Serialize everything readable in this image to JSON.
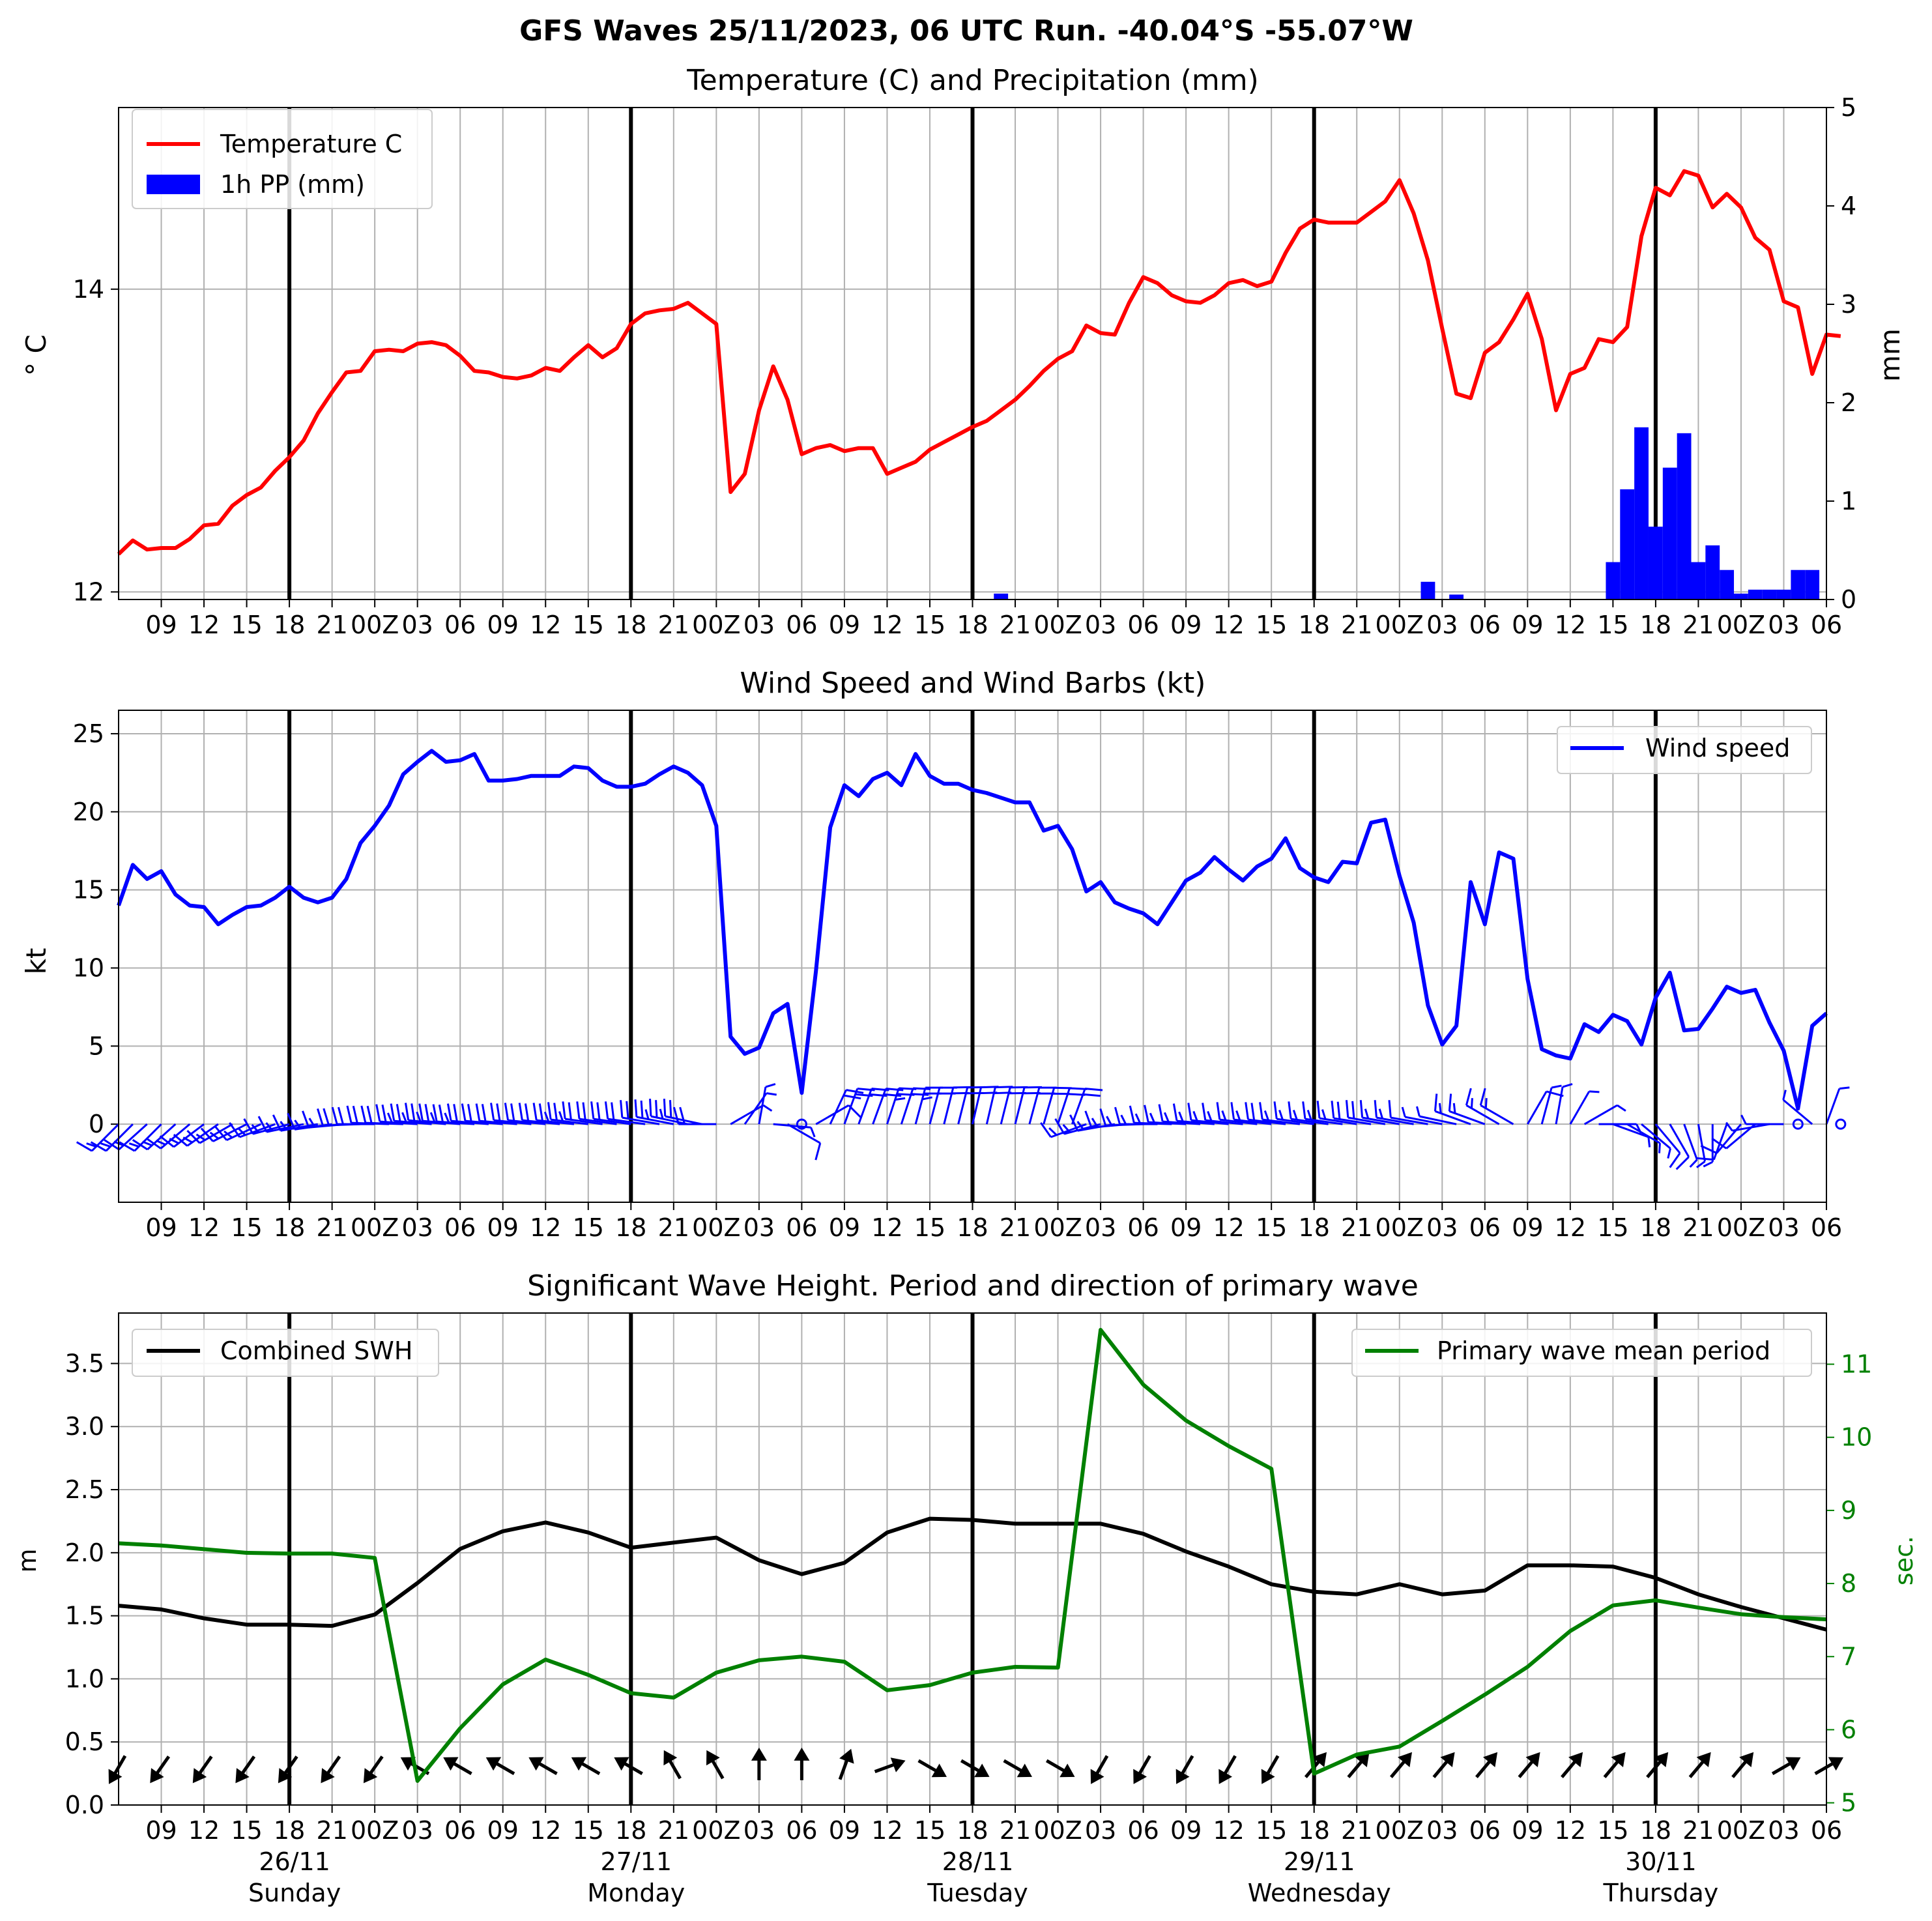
{
  "figure": {
    "suptitle": "GFS Waves 25/11/2023, 06 UTC Run. -40.04°S -55.07°W"
  },
  "time_axis": {
    "start_hour": 6,
    "end_hour": 126,
    "tick_labels": [
      "09",
      "12",
      "15",
      "18",
      "21",
      "00Z",
      "03",
      "06",
      "09",
      "12",
      "15",
      "18",
      "21",
      "00Z",
      "03",
      "06",
      "09",
      "12",
      "15",
      "18",
      "21",
      "00Z",
      "03",
      "06",
      "09",
      "12",
      "15",
      "18",
      "21",
      "00Z",
      "03",
      "06",
      "09",
      "12",
      "15",
      "18",
      "21",
      "00Z",
      "03",
      "06"
    ],
    "days": [
      {
        "date": "26/11",
        "weekday": "Sunday"
      },
      {
        "date": "27/11",
        "weekday": "Monday"
      },
      {
        "date": "28/11",
        "weekday": "Tuesday"
      },
      {
        "date": "29/11",
        "weekday": "Wednesday"
      },
      {
        "date": "30/11",
        "weekday": "Thursday"
      }
    ]
  },
  "colors": {
    "temperature": "#ff0000",
    "precip": "#0000ff",
    "wind": "#0000ff",
    "swh": "#000000",
    "period": "#008000",
    "grid": "#b0b0b0"
  },
  "chart_data": [
    {
      "type": "line",
      "title": "Temperature (C) and Precipitation (mm)",
      "ylabel": "° C",
      "y2label": "mm",
      "ylim": [
        11.95,
        15.2
      ],
      "yticks": [
        12,
        14
      ],
      "y2lim": [
        0,
        5
      ],
      "y2ticks": [
        0,
        1,
        2,
        3,
        4,
        5
      ],
      "legend": "top-left",
      "series": [
        {
          "name": "Temperature C",
          "x_start": 6,
          "x_step": 1,
          "values": [
            12.25,
            12.34,
            12.28,
            12.29,
            12.29,
            12.35,
            12.44,
            12.45,
            12.57,
            12.64,
            12.69,
            12.8,
            12.89,
            13.0,
            13.18,
            13.32,
            13.45,
            13.46,
            13.59,
            13.6,
            13.59,
            13.64,
            13.65,
            13.63,
            13.56,
            13.46,
            13.45,
            13.42,
            13.41,
            13.43,
            13.48,
            13.46,
            13.55,
            13.63,
            13.55,
            13.61,
            13.77,
            13.84,
            13.86,
            13.87,
            13.91,
            13.84,
            13.77,
            12.66,
            12.78,
            13.2,
            13.49,
            13.27,
            12.91,
            12.95,
            12.97,
            12.93,
            12.95,
            12.95,
            12.78,
            12.82,
            12.86,
            12.94,
            12.99,
            13.04,
            13.09,
            13.13,
            13.2,
            13.27,
            13.36,
            13.46,
            13.54,
            13.59,
            13.76,
            13.71,
            13.7,
            13.91,
            14.08,
            14.04,
            13.96,
            13.92,
            13.91,
            13.96,
            14.04,
            14.06,
            14.02,
            14.05,
            14.24,
            14.4,
            14.46,
            14.44,
            14.44,
            14.44,
            14.51,
            14.58,
            14.72,
            14.5,
            14.19,
            13.74,
            13.31,
            13.28,
            13.58,
            13.65,
            13.8,
            13.97,
            13.67,
            13.2,
            13.44,
            13.48,
            13.67,
            13.65,
            13.75,
            14.35,
            14.67,
            14.62,
            14.78,
            14.75,
            14.54,
            14.63,
            14.54,
            14.34,
            14.26,
            13.92,
            13.88,
            13.44,
            13.7,
            13.69
          ]
        },
        {
          "name": "1h PP (mm)",
          "axis": "y2",
          "bars_hours": [
            68,
            98,
            100,
            111,
            112,
            113,
            114,
            115,
            116,
            117,
            118,
            119,
            120,
            121,
            122,
            123,
            124,
            125
          ],
          "bars_values": [
            0.06,
            0.18,
            0.05,
            0.38,
            1.12,
            1.75,
            0.74,
            1.34,
            1.69,
            0.38,
            0.55,
            0.3,
            0.06,
            0.1,
            0.1,
            0.1,
            0.3,
            0.3
          ]
        }
      ]
    },
    {
      "type": "line",
      "title": "Wind Speed and Wind Barbs (kt)",
      "ylabel": "kt",
      "ylim": [
        -5,
        26.5
      ],
      "yticks": [
        0,
        5,
        10,
        15,
        20,
        25
      ],
      "legend": "top-right",
      "series": [
        {
          "name": "Wind speed",
          "x_start": 6,
          "x_step": 1,
          "values": [
            14.0,
            16.6,
            15.7,
            16.2,
            14.7,
            14.0,
            13.9,
            12.8,
            13.4,
            13.9,
            14.0,
            14.5,
            15.2,
            14.5,
            14.2,
            14.5,
            15.7,
            18.0,
            19.1,
            20.4,
            22.4,
            23.2,
            23.9,
            23.2,
            23.3,
            23.7,
            22.0,
            22.0,
            22.1,
            22.3,
            22.3,
            22.3,
            22.9,
            22.8,
            22.0,
            21.6,
            21.6,
            21.8,
            22.4,
            22.9,
            22.5,
            21.7,
            19.1,
            5.6,
            4.5,
            4.9,
            7.1,
            7.7,
            2.0,
            9.8,
            19.0,
            21.7,
            21.0,
            22.1,
            22.5,
            21.7,
            23.7,
            22.3,
            21.8,
            21.8,
            21.4,
            21.2,
            20.9,
            20.6,
            20.6,
            18.8,
            19.1,
            17.6,
            14.9,
            15.5,
            14.2,
            13.8,
            13.5,
            12.8,
            14.2,
            15.6,
            16.1,
            17.1,
            16.3,
            15.6,
            16.5,
            17.0,
            18.3,
            16.4,
            15.8,
            15.5,
            16.8,
            16.7,
            19.3,
            19.5,
            15.9,
            12.9,
            7.6,
            5.1,
            6.3,
            15.5,
            12.8,
            17.4,
            17.0,
            9.3,
            4.8,
            4.4,
            4.2,
            6.4,
            5.9,
            7.0,
            6.6,
            5.1,
            8.1,
            9.7,
            6.0,
            6.1,
            7.4,
            8.8,
            8.4,
            8.6,
            6.5,
            4.7,
            1.0,
            6.3,
            7.1
          ]
        },
        {
          "name": "barbs",
          "x_start": 6,
          "x_step": 1,
          "direction_deg": [
            225,
            225,
            228,
            225,
            228,
            230,
            233,
            235,
            240,
            243,
            245,
            250,
            255,
            258,
            260,
            262,
            265,
            268,
            270,
            272,
            272,
            274,
            275,
            276,
            275,
            274,
            275,
            275,
            275,
            276,
            276,
            276,
            276,
            277,
            278,
            278,
            278,
            278,
            280,
            281,
            282,
            282,
            270,
            60,
            35,
            10,
            95,
            120,
            120,
            60,
            25,
            20,
            20,
            20,
            18,
            18,
            15,
            15,
            14,
            14,
            13,
            13,
            14,
            14,
            15,
            16,
            18,
            20,
            250,
            255,
            260,
            265,
            268,
            270,
            272,
            273,
            274,
            275,
            276,
            276,
            277,
            277,
            277,
            277,
            278,
            278,
            278,
            279,
            279,
            280,
            280,
            280,
            280,
            281,
            282,
            290,
            290,
            300,
            300,
            30,
            15,
            10,
            30,
            60,
            90,
            110,
            120,
            130,
            140,
            150,
            160,
            170,
            180,
            200,
            220,
            230,
            260,
            270,
            290,
            310,
            20,
            30
          ]
        }
      ]
    },
    {
      "type": "line",
      "title": "Significant Wave Height. Period and direction of primary wave",
      "ylabel": "m",
      "y2label": "sec.",
      "ylim": [
        0,
        3.9
      ],
      "yticks": [
        0.0,
        0.5,
        1.0,
        1.5,
        2.0,
        2.5,
        3.0,
        3.5
      ],
      "ytick_labels": [
        "0.0",
        "0.5",
        "1.0",
        "1.5",
        "2.0",
        "2.5",
        "3.0",
        "3.5"
      ],
      "y2lim": [
        4.97,
        11.7
      ],
      "y2ticks": [
        5,
        6,
        7,
        8,
        9,
        10,
        11
      ],
      "series": [
        {
          "name": "Combined SWH",
          "legend": "top-left",
          "x_start": 6,
          "x_step": 3,
          "values": [
            1.58,
            1.55,
            1.48,
            1.43,
            1.43,
            1.42,
            1.51,
            1.76,
            2.03,
            2.17,
            2.24,
            2.16,
            2.04,
            2.08,
            2.12,
            1.94,
            1.83,
            1.92,
            2.16,
            2.27,
            2.26,
            2.23,
            2.23,
            2.23,
            2.15,
            2.01,
            1.89,
            1.75,
            1.69,
            1.67,
            1.75,
            1.67,
            1.7,
            1.9,
            1.9,
            1.89,
            1.8,
            1.67,
            1.57,
            1.48,
            1.39
          ]
        },
        {
          "name": "Primary wave mean period",
          "legend": "top-right",
          "axis": "y2",
          "x_start": 6,
          "x_step": 3,
          "values": [
            8.55,
            8.52,
            8.47,
            8.42,
            8.41,
            8.41,
            8.35,
            5.3,
            6.02,
            6.62,
            6.96,
            6.75,
            6.5,
            6.44,
            6.78,
            6.95,
            7.0,
            6.93,
            6.54,
            6.61,
            6.78,
            6.86,
            6.85,
            11.47,
            10.72,
            10.23,
            9.88,
            9.57,
            5.4,
            5.66,
            5.77,
            6.12,
            6.48,
            6.86,
            7.35,
            7.7,
            7.77,
            7.67,
            7.58,
            7.54,
            7.51
          ]
        },
        {
          "name": "direction",
          "x_start": 6,
          "x_step": 3,
          "direction_deg": [
            210,
            215,
            215,
            215,
            215,
            215,
            215,
            300,
            300,
            300,
            300,
            300,
            300,
            330,
            330,
            0,
            0,
            20,
            70,
            120,
            120,
            120,
            120,
            210,
            210,
            210,
            210,
            210,
            40,
            40,
            40,
            40,
            40,
            40,
            40,
            40,
            40,
            40,
            40,
            60,
            60
          ]
        }
      ]
    }
  ]
}
